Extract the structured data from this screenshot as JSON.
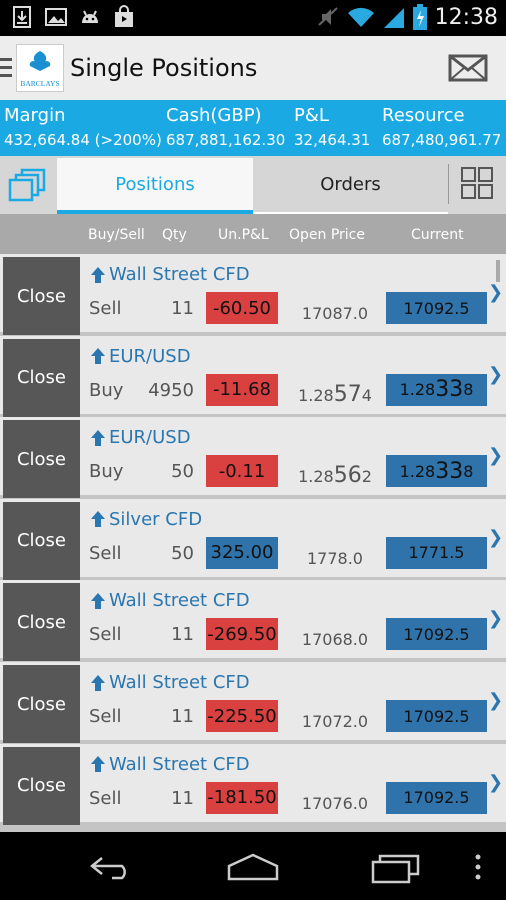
{
  "status_bar": {
    "time": "12:38",
    "icons": [
      "download-icon",
      "image-icon",
      "android-icon",
      "shopping-bag-icon",
      "mute-icon",
      "wifi-icon",
      "signal-icon",
      "battery-charging-icon"
    ]
  },
  "app_bar": {
    "logo_text": "BARCLAYS",
    "title": "Single Positions",
    "mail_icon": "mail-icon"
  },
  "account": {
    "margin": {
      "label": "Margin",
      "value": "432,664.84 (>200%)"
    },
    "cash": {
      "label": "Cash(GBP)",
      "value": "687,881,162.30"
    },
    "pnl": {
      "label": "P&L",
      "value": "32,464.31"
    },
    "resource": {
      "label": "Resource",
      "value": "687,480,961.77"
    }
  },
  "tabs": {
    "positions": "Positions",
    "orders": "Orders",
    "active": "positions"
  },
  "columns": [
    "Buy/Sell",
    "Qty",
    "Un.P&L",
    "Open Price",
    "Current"
  ],
  "rows": [
    {
      "close": "Close",
      "instrument": "Wall Street CFD",
      "side": "Sell",
      "qty": "11",
      "pnl": "-60.50",
      "pnl_sign": "neg",
      "open_a": "17087.0",
      "open_b": "",
      "open_c": "",
      "cur_a": "17092.5",
      "cur_b": "",
      "cur_c": ""
    },
    {
      "close": "Close",
      "instrument": "EUR/USD",
      "side": "Buy",
      "qty": "4950",
      "pnl": "-11.68",
      "pnl_sign": "neg",
      "open_a": "1.28",
      "open_b": "57",
      "open_c": "4",
      "cur_a": "1.28",
      "cur_b": "33",
      "cur_c": "8"
    },
    {
      "close": "Close",
      "instrument": "EUR/USD",
      "side": "Buy",
      "qty": "50",
      "pnl": "-0.11",
      "pnl_sign": "neg",
      "open_a": "1.28",
      "open_b": "56",
      "open_c": "2",
      "cur_a": "1.28",
      "cur_b": "33",
      "cur_c": "8"
    },
    {
      "close": "Close",
      "instrument": "Silver CFD",
      "side": "Sell",
      "qty": "50",
      "pnl": "325.00",
      "pnl_sign": "pos",
      "open_a": "1778.0",
      "open_b": "",
      "open_c": "",
      "cur_a": "1771.5",
      "cur_b": "",
      "cur_c": ""
    },
    {
      "close": "Close",
      "instrument": "Wall Street CFD",
      "side": "Sell",
      "qty": "11",
      "pnl": "-269.50",
      "pnl_sign": "neg",
      "open_a": "17068.0",
      "open_b": "",
      "open_c": "",
      "cur_a": "17092.5",
      "cur_b": "",
      "cur_c": ""
    },
    {
      "close": "Close",
      "instrument": "Wall Street CFD",
      "side": "Sell",
      "qty": "11",
      "pnl": "-225.50",
      "pnl_sign": "neg",
      "open_a": "17072.0",
      "open_b": "",
      "open_c": "",
      "cur_a": "17092.5",
      "cur_b": "",
      "cur_c": ""
    },
    {
      "close": "Close",
      "instrument": "Wall Street CFD",
      "side": "Sell",
      "qty": "11",
      "pnl": "-181.50",
      "pnl_sign": "neg",
      "open_a": "17076.0",
      "open_b": "",
      "open_c": "",
      "cur_a": "17092.5",
      "cur_b": "",
      "cur_c": ""
    }
  ],
  "colors": {
    "accent": "#1aa9e3",
    "negative": "#d94040",
    "positive": "#2f73aa",
    "instrument": "#2a76b0"
  },
  "nav_bar": [
    "back-icon",
    "home-icon",
    "recent-apps-icon",
    "overflow-menu-icon"
  ]
}
